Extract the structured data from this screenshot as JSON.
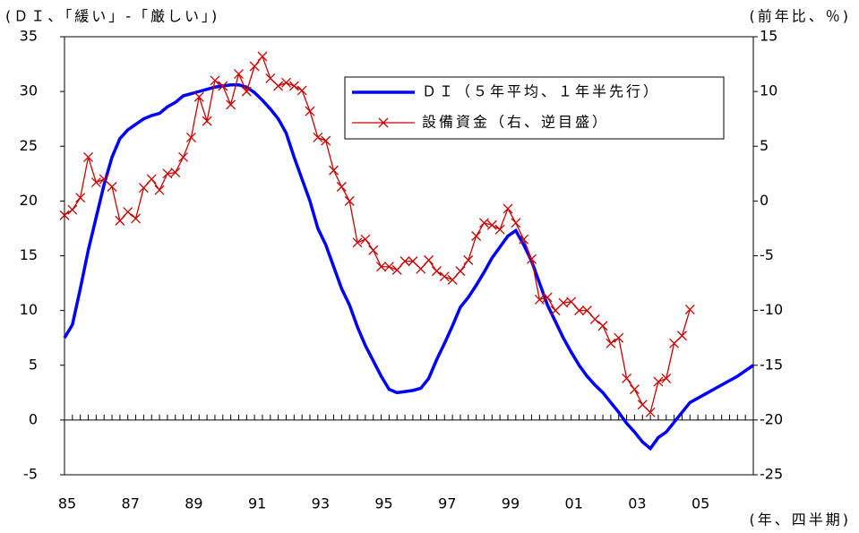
{
  "chart_data": {
    "type": "line",
    "y_label": "(ＤＩ、「緩い」-「厳しい」)",
    "y2_label": "(前年比、％)",
    "x_label": "(年、四半期)",
    "xlim": [
      1985,
      2006.75
    ],
    "xticks": [
      {
        "value": 1985,
        "label": "85"
      },
      {
        "value": 1987,
        "label": "87"
      },
      {
        "value": 1989,
        "label": "89"
      },
      {
        "value": 1991,
        "label": "91"
      },
      {
        "value": 1993,
        "label": "93"
      },
      {
        "value": 1995,
        "label": "95"
      },
      {
        "value": 1997,
        "label": "97"
      },
      {
        "value": 1999,
        "label": "99"
      },
      {
        "value": 2001,
        "label": "01"
      },
      {
        "value": 2003,
        "label": "03"
      },
      {
        "value": 2005,
        "label": "05"
      }
    ],
    "ylim": [
      -5,
      35
    ],
    "yticks": [
      -5,
      0,
      5,
      10,
      15,
      20,
      25,
      30,
      35
    ],
    "y2lim": [
      -25,
      15
    ],
    "y2ticks": [
      -25,
      -20,
      -15,
      -10,
      -5,
      0,
      5,
      10,
      15
    ],
    "legend": "top-right",
    "x": [
      1985,
      1985.25,
      1985.5,
      1985.75,
      1986,
      1986.25,
      1986.5,
      1986.75,
      1987,
      1987.25,
      1987.5,
      1987.75,
      1988,
      1988.25,
      1988.5,
      1988.75,
      1989,
      1989.25,
      1989.5,
      1989.75,
      1990,
      1990.25,
      1990.5,
      1990.75,
      1991,
      1991.25,
      1991.5,
      1991.75,
      1992,
      1992.25,
      1992.5,
      1992.75,
      1993,
      1993.25,
      1993.5,
      1993.75,
      1994,
      1994.25,
      1994.5,
      1994.75,
      1995,
      1995.25,
      1995.5,
      1995.75,
      1996,
      1996.25,
      1996.5,
      1996.75,
      1997,
      1997.25,
      1997.5,
      1997.75,
      1998,
      1998.25,
      1998.5,
      1998.75,
      1999,
      1999.25,
      1999.5,
      1999.75,
      2000,
      2000.25,
      2000.5,
      2000.75,
      2001,
      2001.25,
      2001.5,
      2001.75,
      2002,
      2002.25,
      2002.5,
      2002.75,
      2003,
      2003.25,
      2003.5,
      2003.75,
      2004,
      2004.25,
      2004.5,
      2004.75,
      2005,
      2005.25,
      2005.5,
      2005.75,
      2006,
      2006.25,
      2006.5,
      2006.75
    ],
    "series": [
      {
        "name": "ＤＩ（５年平均、１年半先行）",
        "color": "#0000ff",
        "values": [
          7.5,
          8.7,
          12,
          15.5,
          18.5,
          21.5,
          24,
          25.7,
          26.5,
          27,
          27.5,
          27.8,
          28,
          28.6,
          29,
          29.6,
          29.8,
          30,
          30.2,
          30.4,
          30.5,
          30.6,
          30.6,
          30.4,
          29.9,
          29.2,
          28.4,
          27.5,
          26.2,
          24,
          22,
          20,
          17.5,
          16,
          14,
          12,
          10.5,
          8.5,
          6.8,
          5.4,
          4,
          2.8,
          2.5,
          2.6,
          2.7,
          2.9,
          3.8,
          5.5,
          7,
          8.6,
          10.3,
          11.2,
          12.3,
          13.5,
          14.8,
          15.8,
          16.8,
          17.3,
          16,
          14.5,
          12.5,
          10.5,
          9,
          7.5,
          6.2,
          5,
          4,
          3.2,
          2.5,
          1.6,
          0.7,
          -0.3,
          -1.1,
          -2,
          -2.6,
          -1.6,
          -1.1,
          -0.2,
          0.7,
          1.6,
          2,
          2.4,
          2.8,
          3.2,
          3.6,
          4,
          4.5,
          5
        ]
      },
      {
        "name": "設備資金（右、逆目盛）",
        "color": "#cc0000",
        "axis": "y2",
        "marker": "x",
        "values": [
          -1.3,
          -0.8,
          0.3,
          4,
          1.7,
          2,
          1.3,
          -1.8,
          -1,
          -1.6,
          1.2,
          2,
          1,
          2.5,
          2.6,
          4,
          5.8,
          9.5,
          7.3,
          11,
          10.5,
          8.8,
          11.6,
          10,
          12.3,
          13.2,
          11.2,
          10.5,
          10.8,
          10.5,
          10.1,
          8.2,
          5.8,
          5.5,
          2.8,
          1.3,
          0,
          -3.8,
          -3.5,
          -4.5,
          -6,
          -6,
          -6.3,
          -5.5,
          -5.5,
          -6.2,
          -5.4,
          -6.4,
          -6.9,
          -7.2,
          -6.4,
          -5.4,
          -3.2,
          -2,
          -2.2,
          -2.6,
          -0.7,
          -2,
          -3.5,
          -5.3,
          -9,
          -8.8,
          -10,
          -9.3,
          -9.2,
          -10,
          -10,
          -10.8,
          -11.4,
          -13,
          -12.5,
          -16.2,
          -17.2,
          -18.6,
          -19.3,
          -16.5,
          -16.2,
          -13,
          -12.3,
          -9.9,
          null,
          null,
          null,
          null,
          null,
          null,
          null,
          null
        ]
      }
    ]
  }
}
